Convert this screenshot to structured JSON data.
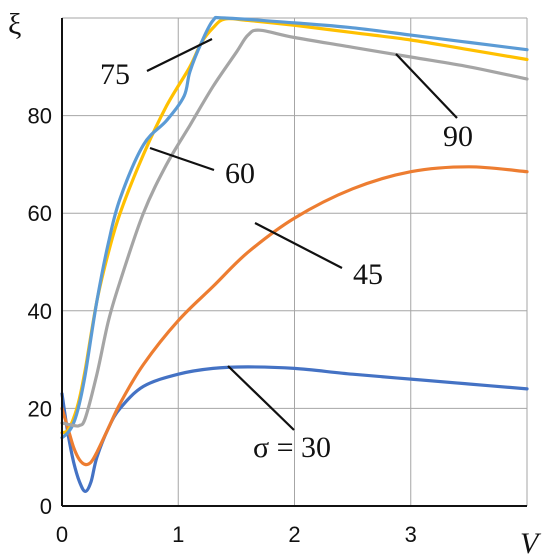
{
  "chart_data": {
    "type": "line",
    "xlabel": "V",
    "ylabel": "ξ",
    "xlim": [
      0,
      4
    ],
    "ylim": [
      0,
      100
    ],
    "x_ticks": [
      "0",
      "1",
      "2",
      "3"
    ],
    "y_ticks": [
      "0",
      "20",
      "40",
      "60",
      "80"
    ],
    "grid": true,
    "legend": "none",
    "series": [
      {
        "name": "σ = 30",
        "color": "#4472C4",
        "points": [
          [
            0,
            23
          ],
          [
            0.05,
            15
          ],
          [
            0.1,
            9
          ],
          [
            0.15,
            5
          ],
          [
            0.2,
            3
          ],
          [
            0.25,
            5
          ],
          [
            0.3,
            10
          ],
          [
            0.4,
            16
          ],
          [
            0.5,
            20
          ],
          [
            0.7,
            24.5
          ],
          [
            1,
            27
          ],
          [
            1.3,
            28.2
          ],
          [
            1.6,
            28.5
          ],
          [
            2,
            28.2
          ],
          [
            2.5,
            27
          ],
          [
            3,
            26
          ],
          [
            3.5,
            25
          ],
          [
            4,
            24
          ]
        ]
      },
      {
        "name": "45",
        "color": "#ED7D31",
        "points": [
          [
            0,
            20
          ],
          [
            0.05,
            16
          ],
          [
            0.1,
            12
          ],
          [
            0.15,
            9.5
          ],
          [
            0.2,
            8.5
          ],
          [
            0.25,
            9
          ],
          [
            0.3,
            11
          ],
          [
            0.4,
            16
          ],
          [
            0.5,
            21
          ],
          [
            0.7,
            29
          ],
          [
            1,
            38
          ],
          [
            1.3,
            45
          ],
          [
            1.6,
            52
          ],
          [
            2,
            59
          ],
          [
            2.5,
            65
          ],
          [
            3,
            68.5
          ],
          [
            3.5,
            69.5
          ],
          [
            4,
            68.5
          ]
        ]
      },
      {
        "name": "60",
        "color": "#FFC000",
        "points": [
          [
            0,
            15
          ],
          [
            0.05,
            15.5
          ],
          [
            0.1,
            18
          ],
          [
            0.15,
            22
          ],
          [
            0.2,
            28
          ],
          [
            0.3,
            42
          ],
          [
            0.4,
            52
          ],
          [
            0.5,
            60
          ],
          [
            0.7,
            72
          ],
          [
            0.9,
            82
          ],
          [
            1.1,
            90
          ],
          [
            1.2,
            95
          ],
          [
            1.3,
            98
          ],
          [
            1.4,
            99.8
          ],
          [
            1.6,
            99.5
          ],
          [
            2,
            98.5
          ],
          [
            2.5,
            97
          ],
          [
            3,
            95.5
          ],
          [
            3.5,
            93.5
          ],
          [
            4,
            91.5
          ]
        ]
      },
      {
        "name": "75",
        "color": "#5B9BD5",
        "points": [
          [
            0,
            14
          ],
          [
            0.05,
            15
          ],
          [
            0.1,
            17
          ],
          [
            0.15,
            21
          ],
          [
            0.2,
            27
          ],
          [
            0.3,
            42
          ],
          [
            0.4,
            54
          ],
          [
            0.5,
            63
          ],
          [
            0.7,
            74
          ],
          [
            0.9,
            79
          ],
          [
            1.05,
            84
          ],
          [
            1.1,
            89
          ],
          [
            1.2,
            95
          ],
          [
            1.3,
            99.5
          ],
          [
            1.4,
            100
          ],
          [
            2,
            99
          ],
          [
            2.5,
            98
          ],
          [
            3,
            96.5
          ],
          [
            3.5,
            95
          ],
          [
            4,
            93.5
          ]
        ]
      },
      {
        "name": "90",
        "color": "#A5A5A5",
        "points": [
          [
            0,
            17
          ],
          [
            0.1,
            16.5
          ],
          [
            0.15,
            16.5
          ],
          [
            0.2,
            18
          ],
          [
            0.3,
            27
          ],
          [
            0.4,
            38
          ],
          [
            0.5,
            46
          ],
          [
            0.7,
            60
          ],
          [
            0.9,
            70
          ],
          [
            1.1,
            78
          ],
          [
            1.3,
            86
          ],
          [
            1.5,
            93
          ],
          [
            1.6,
            96.5
          ],
          [
            1.7,
            97.5
          ],
          [
            2,
            96
          ],
          [
            2.5,
            94
          ],
          [
            3,
            92
          ],
          [
            3.5,
            90
          ],
          [
            4,
            87.5
          ]
        ]
      }
    ]
  }
}
